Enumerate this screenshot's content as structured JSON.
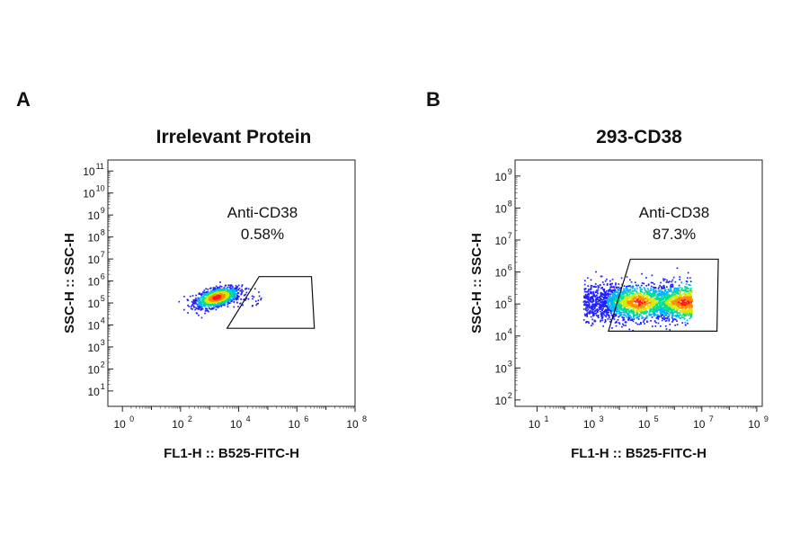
{
  "chart_data": [
    {
      "type": "scatter",
      "panel_label": "A",
      "title": "Irrelevant Protein",
      "xlabel": "FL1-H :: B525-FITC-H",
      "ylabel": "SSC-H :: SSC-H",
      "x_scale": "log",
      "y_scale": "log",
      "xlim_log10": [
        -0.5,
        8
      ],
      "ylim_log10": [
        0.3,
        11.5
      ],
      "x_ticks": [
        {
          "base": "10",
          "exp": "0",
          "log": 0
        },
        {
          "base": "10",
          "exp": "2",
          "log": 2
        },
        {
          "base": "10",
          "exp": "4",
          "log": 4
        },
        {
          "base": "10",
          "exp": "6",
          "log": 6
        },
        {
          "base": "10",
          "exp": "8",
          "log": 8
        }
      ],
      "y_ticks": [
        {
          "base": "10",
          "exp": "1",
          "log": 1
        },
        {
          "base": "10",
          "exp": "2",
          "log": 2
        },
        {
          "base": "10",
          "exp": "3",
          "log": 3
        },
        {
          "base": "10",
          "exp": "4",
          "log": 4
        },
        {
          "base": "10",
          "exp": "5",
          "log": 5
        },
        {
          "base": "10",
          "exp": "6",
          "log": 6
        },
        {
          "base": "10",
          "exp": "7",
          "log": 7
        },
        {
          "base": "10",
          "exp": "8",
          "log": 8
        },
        {
          "base": "10",
          "exp": "9",
          "log": 9
        },
        {
          "base": "10",
          "exp": "10",
          "log": 10
        },
        {
          "base": "10",
          "exp": "11",
          "log": 11
        }
      ],
      "gate": {
        "name": "Anti-CD38",
        "percent": "0.58%",
        "polygon_log10": [
          [
            4.7,
            6.2
          ],
          [
            6.5,
            6.2
          ],
          [
            6.6,
            3.85
          ],
          [
            3.6,
            3.85
          ]
        ]
      },
      "population": {
        "center_log10": [
          3.25,
          5.25
        ],
        "spread_log10": [
          0.35,
          0.22
        ],
        "count": 1200
      },
      "grid": false,
      "colormap": [
        "#1f1fff",
        "#00b4ff",
        "#00e08a",
        "#d8e800",
        "#ff8a00",
        "#ff1a1a"
      ]
    },
    {
      "type": "scatter",
      "panel_label": "B",
      "title": "293-CD38",
      "xlabel": "FL1-H :: B525-FITC-H",
      "ylabel": "SSC-H :: SSC-H",
      "x_scale": "log",
      "y_scale": "log",
      "xlim_log10": [
        0.2,
        9.2
      ],
      "ylim_log10": [
        1.8,
        9.5
      ],
      "x_ticks": [
        {
          "base": "10",
          "exp": "1",
          "log": 1
        },
        {
          "base": "10",
          "exp": "3",
          "log": 3
        },
        {
          "base": "10",
          "exp": "5",
          "log": 5
        },
        {
          "base": "10",
          "exp": "7",
          "log": 7
        },
        {
          "base": "10",
          "exp": "9",
          "log": 9
        }
      ],
      "y_ticks": [
        {
          "base": "10",
          "exp": "2",
          "log": 2
        },
        {
          "base": "10",
          "exp": "3",
          "log": 3
        },
        {
          "base": "10",
          "exp": "4",
          "log": 4
        },
        {
          "base": "10",
          "exp": "5",
          "log": 5
        },
        {
          "base": "10",
          "exp": "6",
          "log": 6
        },
        {
          "base": "10",
          "exp": "7",
          "log": 7
        },
        {
          "base": "10",
          "exp": "8",
          "log": 8
        },
        {
          "base": "10",
          "exp": "9",
          "log": 9
        }
      ],
      "gate": {
        "name": "Anti-CD38",
        "percent": "87.3%",
        "polygon_log10": [
          [
            4.4,
            6.4
          ],
          [
            7.6,
            6.4
          ],
          [
            7.55,
            4.15
          ],
          [
            3.6,
            4.15
          ]
        ]
      },
      "population": {
        "x_range_log10": [
          2.7,
          6.65
        ],
        "center_y_log10": 5.05,
        "spread_y_log10": 0.28,
        "hotspots_x_log10": [
          4.7,
          6.35
        ],
        "count": 2600
      },
      "grid": false,
      "colormap": [
        "#1f1fff",
        "#00b4ff",
        "#00e08a",
        "#d8e800",
        "#ff8a00",
        "#ff1a1a"
      ]
    }
  ]
}
